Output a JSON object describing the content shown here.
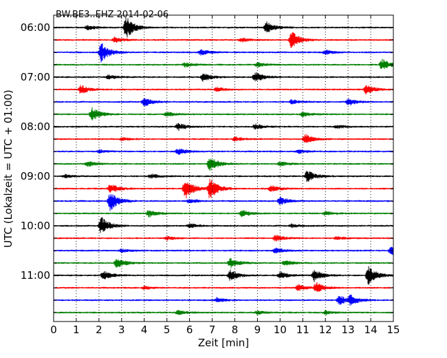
{
  "chart_data": {
    "type": "line",
    "title": "BW.BE3..EHZ 2014-02-06",
    "xlabel": "Zeit  [min]",
    "ylabel": "UTC (Lokalzeit = UTC + 01:00)",
    "xlim": [
      0,
      15
    ],
    "x_ticks": [
      0,
      1,
      2,
      3,
      4,
      5,
      6,
      7,
      8,
      9,
      10,
      11,
      12,
      13,
      14,
      15
    ],
    "x_tick_labels": [
      "0",
      "1",
      "2",
      "3",
      "4",
      "5",
      "6",
      "7",
      "8",
      "9",
      "10",
      "11",
      "12",
      "13",
      "14",
      "15"
    ],
    "y_tick_labels": [
      "06:00",
      "07:00",
      "08:00",
      "09:00",
      "10:00",
      "11:00"
    ],
    "y_tick_rows": [
      0,
      4,
      8,
      12,
      16,
      20
    ],
    "grid": "vertical-dotted",
    "row_interval_minutes": 15,
    "row_colors": [
      "#000000",
      "#ff0000",
      "#0000ff",
      "#008000"
    ],
    "rows": [
      {
        "start": "06:00",
        "color": "#000000",
        "events": [
          {
            "t": 3.2,
            "amp": 1.0
          },
          {
            "t": 9.4,
            "amp": 0.5
          },
          {
            "t": 1.5,
            "amp": 0.2
          }
        ]
      },
      {
        "start": "06:15",
        "color": "#ff0000",
        "events": [
          {
            "t": 10.5,
            "amp": 0.8
          },
          {
            "t": 2.7,
            "amp": 0.25
          },
          {
            "t": 8.3,
            "amp": 0.2
          }
        ]
      },
      {
        "start": "06:30",
        "color": "#0000ff",
        "events": [
          {
            "t": 2.1,
            "amp": 0.9
          },
          {
            "t": 6.5,
            "amp": 0.25
          },
          {
            "t": 12.0,
            "amp": 0.2
          }
        ]
      },
      {
        "start": "06:45",
        "color": "#008000",
        "events": [
          {
            "t": 14.5,
            "amp": 0.5
          },
          {
            "t": 5.8,
            "amp": 0.2
          },
          {
            "t": 9.0,
            "amp": 0.2
          }
        ]
      },
      {
        "start": "07:00",
        "color": "#000000",
        "events": [
          {
            "t": 6.6,
            "amp": 0.4
          },
          {
            "t": 8.9,
            "amp": 0.45
          },
          {
            "t": 2.4,
            "amp": 0.2
          }
        ]
      },
      {
        "start": "07:15",
        "color": "#ff0000",
        "events": [
          {
            "t": 1.2,
            "amp": 0.4
          },
          {
            "t": 13.8,
            "amp": 0.45
          },
          {
            "t": 7.2,
            "amp": 0.2
          }
        ]
      },
      {
        "start": "07:30",
        "color": "#0000ff",
        "events": [
          {
            "t": 4.0,
            "amp": 0.4
          },
          {
            "t": 13.0,
            "amp": 0.35
          },
          {
            "t": 10.5,
            "amp": 0.2
          }
        ]
      },
      {
        "start": "07:45",
        "color": "#008000",
        "events": [
          {
            "t": 1.7,
            "amp": 0.6
          },
          {
            "t": 5.0,
            "amp": 0.2
          },
          {
            "t": 11.0,
            "amp": 0.2
          }
        ]
      },
      {
        "start": "08:00",
        "color": "#000000",
        "events": [
          {
            "t": 5.5,
            "amp": 0.35
          },
          {
            "t": 8.9,
            "amp": 0.25
          },
          {
            "t": 12.5,
            "amp": 0.15
          }
        ]
      },
      {
        "start": "08:15",
        "color": "#ff0000",
        "events": [
          {
            "t": 11.1,
            "amp": 0.45
          },
          {
            "t": 8.0,
            "amp": 0.2
          },
          {
            "t": 3.0,
            "amp": 0.15
          }
        ]
      },
      {
        "start": "08:30",
        "color": "#0000ff",
        "events": [
          {
            "t": 5.5,
            "amp": 0.3
          },
          {
            "t": 10.8,
            "amp": 0.2
          },
          {
            "t": 2.0,
            "amp": 0.15
          }
        ]
      },
      {
        "start": "08:45",
        "color": "#008000",
        "events": [
          {
            "t": 6.9,
            "amp": 0.7
          },
          {
            "t": 1.5,
            "amp": 0.25
          },
          {
            "t": 10.0,
            "amp": 0.2
          }
        ]
      },
      {
        "start": "09:00",
        "color": "#000000",
        "events": [
          {
            "t": 11.2,
            "amp": 0.55
          },
          {
            "t": 4.3,
            "amp": 0.2
          },
          {
            "t": 0.5,
            "amp": 0.15
          }
        ]
      },
      {
        "start": "09:15",
        "color": "#ff0000",
        "events": [
          {
            "t": 5.8,
            "amp": 1.0
          },
          {
            "t": 6.9,
            "amp": 1.0
          },
          {
            "t": 2.5,
            "amp": 0.45
          },
          {
            "t": 9.6,
            "amp": 0.3
          }
        ]
      },
      {
        "start": "09:30",
        "color": "#0000ff",
        "events": [
          {
            "t": 2.5,
            "amp": 0.9
          },
          {
            "t": 10.0,
            "amp": 0.4
          },
          {
            "t": 6.0,
            "amp": 0.2
          }
        ]
      },
      {
        "start": "09:45",
        "color": "#008000",
        "events": [
          {
            "t": 4.2,
            "amp": 0.35
          },
          {
            "t": 8.3,
            "amp": 0.3
          },
          {
            "t": 12.0,
            "amp": 0.2
          }
        ]
      },
      {
        "start": "10:00",
        "color": "#000000",
        "events": [
          {
            "t": 2.1,
            "amp": 0.8
          },
          {
            "t": 6.0,
            "amp": 0.2
          },
          {
            "t": 10.5,
            "amp": 0.15
          }
        ]
      },
      {
        "start": "10:15",
        "color": "#ff0000",
        "events": [
          {
            "t": 9.8,
            "amp": 0.3
          },
          {
            "t": 5.0,
            "amp": 0.15
          },
          {
            "t": 12.5,
            "amp": 0.15
          }
        ]
      },
      {
        "start": "10:30",
        "color": "#0000ff",
        "events": [
          {
            "t": 14.9,
            "amp": 0.45
          },
          {
            "t": 9.8,
            "amp": 0.25
          },
          {
            "t": 3.0,
            "amp": 0.15
          }
        ]
      },
      {
        "start": "10:45",
        "color": "#008000",
        "events": [
          {
            "t": 2.8,
            "amp": 0.5
          },
          {
            "t": 7.8,
            "amp": 0.45
          },
          {
            "t": 10.2,
            "amp": 0.25
          }
        ]
      },
      {
        "start": "11:00",
        "color": "#000000",
        "events": [
          {
            "t": 13.9,
            "amp": 0.85
          },
          {
            "t": 11.5,
            "amp": 0.55
          },
          {
            "t": 7.8,
            "amp": 0.5
          },
          {
            "t": 2.2,
            "amp": 0.4
          },
          {
            "t": 10.0,
            "amp": 0.35
          }
        ]
      },
      {
        "start": "11:15",
        "color": "#ff0000",
        "events": [
          {
            "t": 11.6,
            "amp": 0.45
          },
          {
            "t": 10.8,
            "amp": 0.3
          },
          {
            "t": 4.0,
            "amp": 0.15
          }
        ]
      },
      {
        "start": "11:30",
        "color": "#0000ff",
        "events": [
          {
            "t": 12.6,
            "amp": 0.45
          },
          {
            "t": 13.1,
            "amp": 0.4
          },
          {
            "t": 7.2,
            "amp": 0.2
          }
        ]
      },
      {
        "start": "11:45",
        "color": "#008000",
        "events": [
          {
            "t": 5.5,
            "amp": 0.2
          },
          {
            "t": 9.0,
            "amp": 0.15
          },
          {
            "t": 12.0,
            "amp": 0.15
          }
        ]
      }
    ]
  }
}
